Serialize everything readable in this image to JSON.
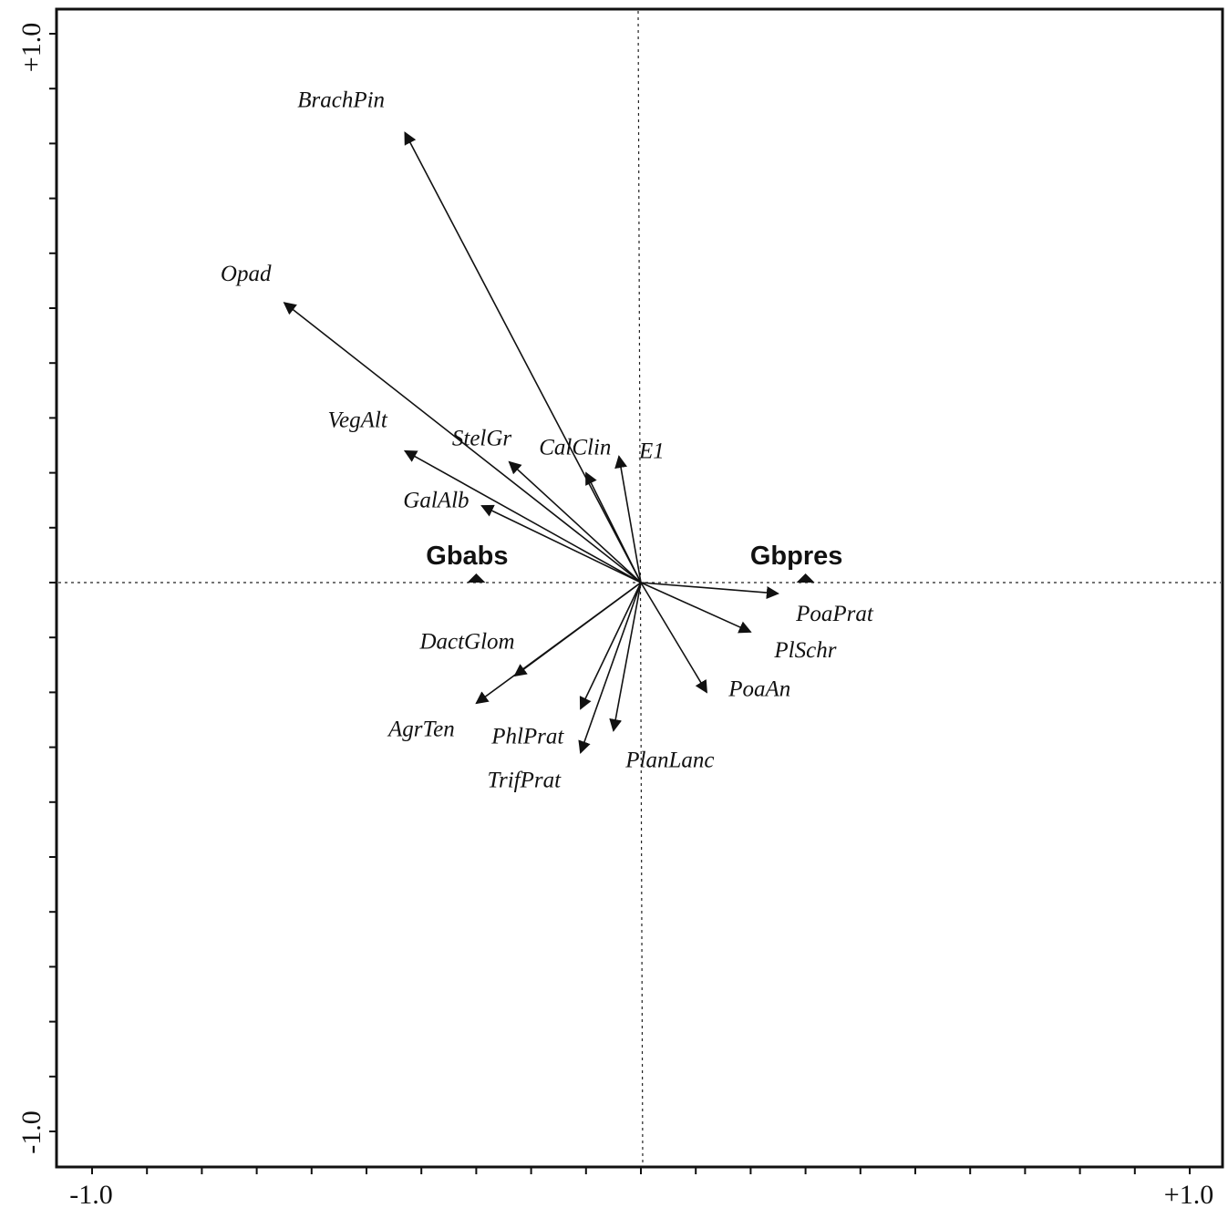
{
  "chart_data": {
    "type": "scatter",
    "subtype": "ordination-biplot",
    "xlim": [
      -1.0,
      1.0
    ],
    "ylim": [
      -1.0,
      1.0
    ],
    "x_tick_labels": {
      "min": "-1.0",
      "max": "+1.0"
    },
    "y_tick_labels": {
      "min": "-1.0",
      "max": "+1.0"
    },
    "origin_reference_lines": "dotted",
    "vectors": [
      {
        "label": "BrachPin",
        "x": -0.43,
        "y": 0.82
      },
      {
        "label": "Opad",
        "x": -0.65,
        "y": 0.51
      },
      {
        "label": "VegAlt",
        "x": -0.43,
        "y": 0.24
      },
      {
        "label": "StelGr",
        "x": -0.24,
        "y": 0.22
      },
      {
        "label": "CalClin",
        "x": -0.1,
        "y": 0.2
      },
      {
        "label": "E1",
        "x": -0.04,
        "y": 0.23
      },
      {
        "label": "GalAlb",
        "x": -0.29,
        "y": 0.14
      },
      {
        "label": "PoaPrat",
        "x": 0.25,
        "y": -0.02
      },
      {
        "label": "PlSchr",
        "x": 0.2,
        "y": -0.09
      },
      {
        "label": "PoaAn",
        "x": 0.12,
        "y": -0.2
      },
      {
        "label": "DactGlom",
        "x": -0.23,
        "y": -0.17
      },
      {
        "label": "AgrTen",
        "x": -0.3,
        "y": -0.22
      },
      {
        "label": "PhlPrat",
        "x": -0.11,
        "y": -0.23
      },
      {
        "label": "TrifPrat",
        "x": -0.11,
        "y": -0.31
      },
      {
        "label": "PlanLanc",
        "x": -0.05,
        "y": -0.27
      }
    ],
    "classes": [
      {
        "label": "Gbabs",
        "x": -0.3,
        "y": 0.0
      },
      {
        "label": "Gbpres",
        "x": 0.3,
        "y": 0.0
      }
    ]
  }
}
